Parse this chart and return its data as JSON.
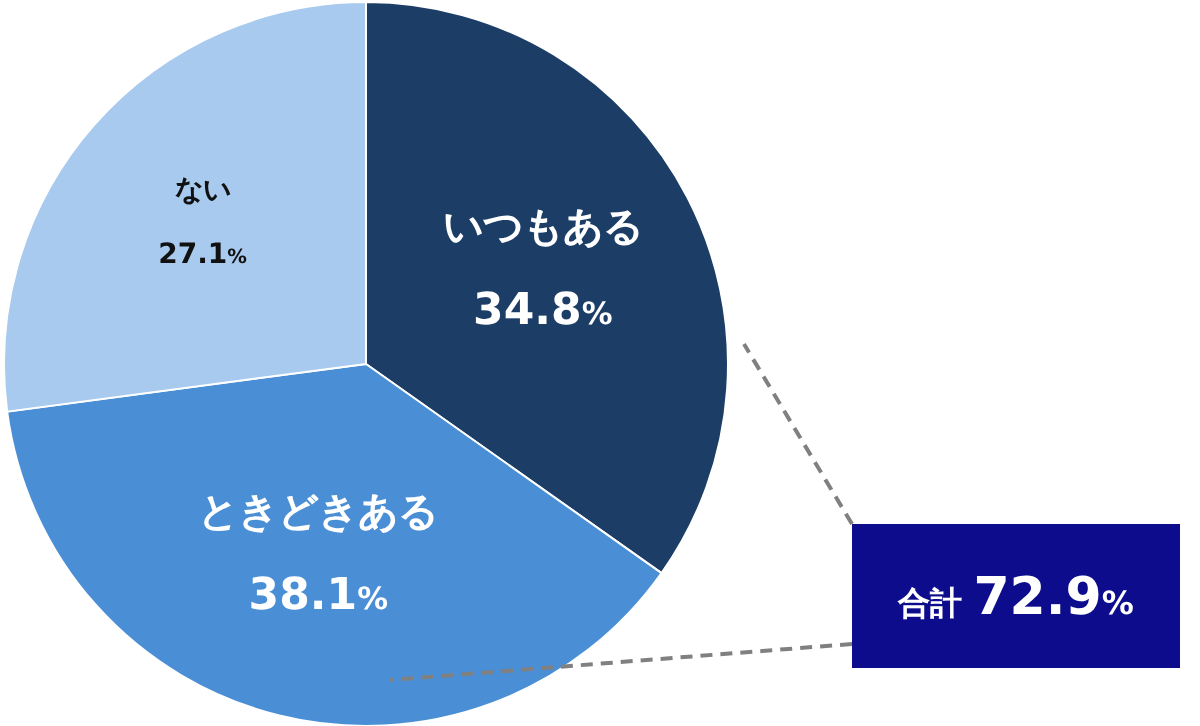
{
  "chart_data": {
    "type": "pie",
    "categories": [
      "いつもある",
      "ときどきある",
      "ない"
    ],
    "values": [
      34.8,
      38.1,
      27.1
    ],
    "colors": [
      "#1b3d66",
      "#4a8fd6",
      "#a8caee"
    ],
    "value_labels": [
      "34.8%",
      "38.1%",
      "27.1%"
    ],
    "annotations": [
      "合計 72.9%"
    ]
  }
}
